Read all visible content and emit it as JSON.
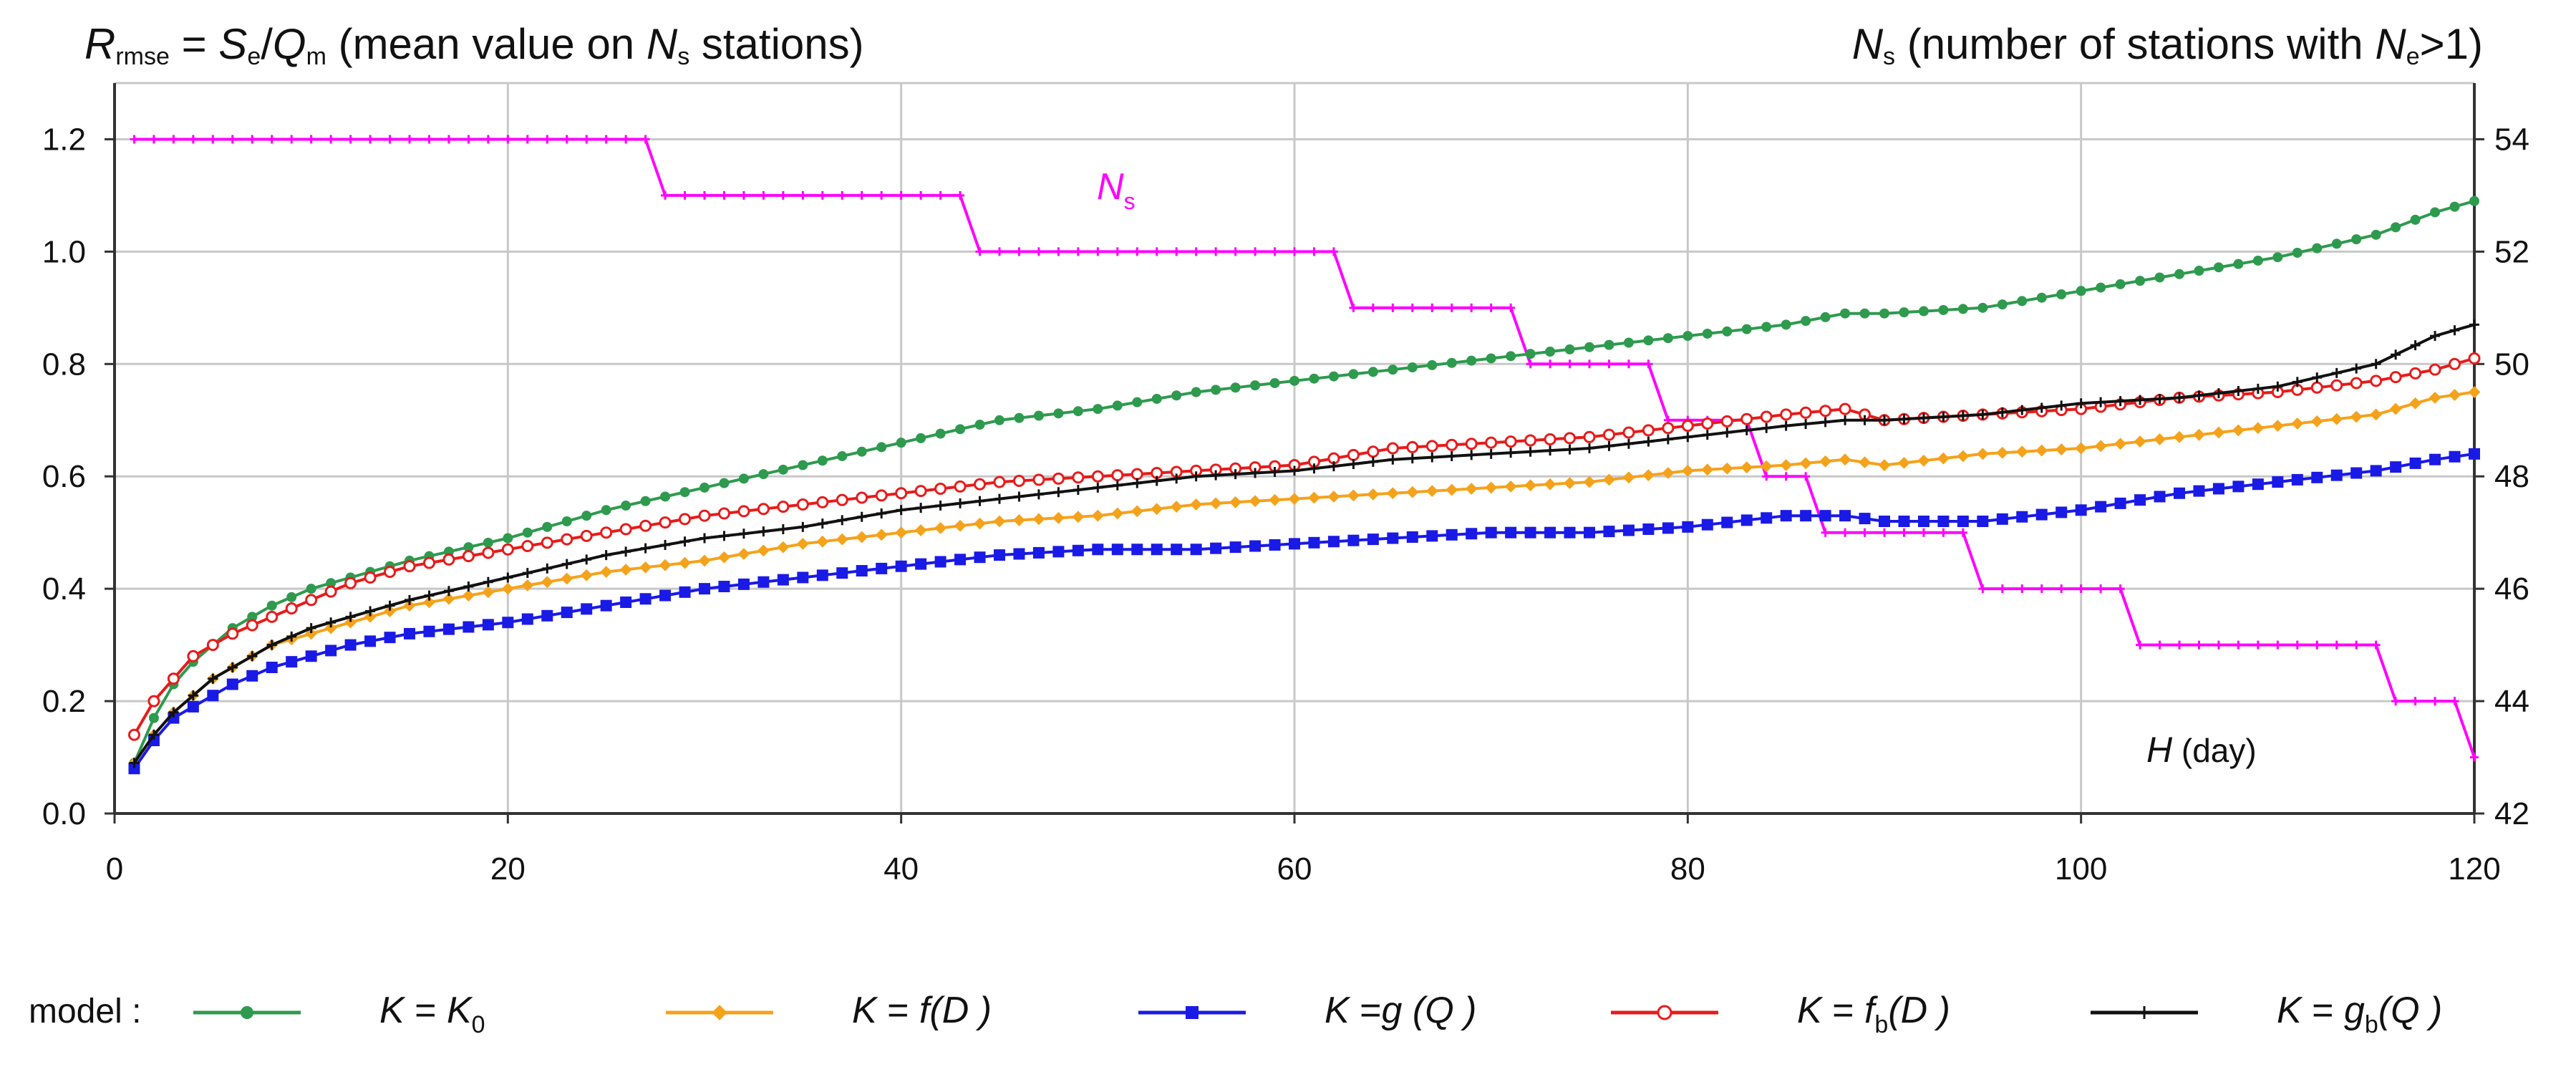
{
  "chart_data": {
    "type": "line",
    "left_title": {
      "r": "R",
      "r_sub": "rmse",
      "eq": " = ",
      "s": "S",
      "s_sub": "e",
      "slash": "/",
      "q": "Q",
      "q_sub": "m",
      "text": " (mean value on ",
      "n": "N",
      "n_sub": "s",
      "end": " stations)"
    },
    "right_title": {
      "n": "N",
      "n_sub": "s",
      "text": " (number of stations with ",
      "ne": "N",
      "ne_sub": "e",
      "end": ">1)"
    },
    "ns_label": {
      "n": "N",
      "sub": "s"
    },
    "x_label": {
      "h": "H",
      "unit": " (day)"
    },
    "xlim": [
      0,
      120
    ],
    "ylim": [
      0,
      1.3
    ],
    "y2lim": [
      42,
      55
    ],
    "x_ticks": [
      "0",
      "20",
      "40",
      "60",
      "80",
      "100",
      "120"
    ],
    "y_ticks": [
      "0.0",
      "0.2",
      "0.4",
      "0.6",
      "0.8",
      "1.0",
      "1.2"
    ],
    "y2_ticks": [
      "42",
      "44",
      "46",
      "48",
      "50",
      "52",
      "54"
    ],
    "grid": true,
    "legend_prefix": "model :",
    "legend": [
      {
        "k": "K",
        "eq": " = ",
        "f": "K",
        "sub": "0",
        "color": "#2e9a4e"
      },
      {
        "k": "K",
        "eq": " = ",
        "f": "f",
        "arg": "(D )",
        "color": "#f5a21b"
      },
      {
        "k": "K",
        "eq": " =",
        "f": "g",
        "arg": " (Q )",
        "color": "#1a1ae6"
      },
      {
        "k": "K",
        "eq": " = ",
        "f": "f",
        "sub": "b",
        "arg": "(D )",
        "color": "#e81b1b"
      },
      {
        "k": "K",
        "eq": " = ",
        "f": "g",
        "sub": "b",
        "arg": "(Q )",
        "color": "#111111"
      }
    ],
    "series": [
      {
        "name": "K = K0",
        "color": "#2e9a4e",
        "marker": "circle",
        "x": [
          1,
          2,
          3,
          4,
          5,
          6,
          8,
          10,
          12,
          15,
          20,
          25,
          30,
          35,
          40,
          45,
          50,
          55,
          60,
          65,
          70,
          75,
          80,
          85,
          88,
          90,
          95,
          100,
          105,
          110,
          115,
          118,
          120
        ],
        "y": [
          0.09,
          0.17,
          0.23,
          0.27,
          0.3,
          0.33,
          0.37,
          0.4,
          0.42,
          0.45,
          0.49,
          0.54,
          0.58,
          0.62,
          0.66,
          0.7,
          0.72,
          0.75,
          0.77,
          0.79,
          0.81,
          0.83,
          0.85,
          0.87,
          0.89,
          0.89,
          0.9,
          0.93,
          0.96,
          0.99,
          1.03,
          1.07,
          1.09
        ]
      },
      {
        "name": "K = f(D)",
        "color": "#f5a21b",
        "marker": "diamond",
        "x": [
          1,
          2,
          3,
          4,
          5,
          6,
          8,
          10,
          12,
          15,
          20,
          25,
          30,
          35,
          40,
          45,
          50,
          55,
          60,
          65,
          70,
          75,
          80,
          85,
          88,
          90,
          95,
          100,
          105,
          110,
          115,
          118,
          120
        ],
        "y": [
          0.09,
          0.14,
          0.18,
          0.21,
          0.24,
          0.26,
          0.3,
          0.32,
          0.34,
          0.37,
          0.4,
          0.43,
          0.45,
          0.48,
          0.5,
          0.52,
          0.53,
          0.55,
          0.56,
          0.57,
          0.58,
          0.59,
          0.61,
          0.62,
          0.63,
          0.62,
          0.64,
          0.65,
          0.67,
          0.69,
          0.71,
          0.74,
          0.75
        ]
      },
      {
        "name": "K = g(Q)",
        "color": "#1a1ae6",
        "marker": "square",
        "x": [
          1,
          2,
          3,
          4,
          5,
          6,
          8,
          10,
          12,
          15,
          20,
          25,
          30,
          35,
          40,
          45,
          50,
          55,
          60,
          65,
          70,
          75,
          80,
          85,
          88,
          90,
          95,
          100,
          105,
          110,
          115,
          118,
          120
        ],
        "y": [
          0.08,
          0.13,
          0.17,
          0.19,
          0.21,
          0.23,
          0.26,
          0.28,
          0.3,
          0.32,
          0.34,
          0.37,
          0.4,
          0.42,
          0.44,
          0.46,
          0.47,
          0.47,
          0.48,
          0.49,
          0.5,
          0.5,
          0.51,
          0.53,
          0.53,
          0.52,
          0.52,
          0.54,
          0.57,
          0.59,
          0.61,
          0.63,
          0.64
        ]
      },
      {
        "name": "K = fb(D)",
        "color": "#e81b1b",
        "marker": "open-circle",
        "x": [
          1,
          2,
          3,
          4,
          5,
          6,
          8,
          10,
          12,
          15,
          20,
          25,
          30,
          35,
          40,
          45,
          50,
          55,
          60,
          65,
          70,
          75,
          80,
          85,
          88,
          90,
          95,
          100,
          105,
          110,
          115,
          118,
          120
        ],
        "y": [
          0.14,
          0.2,
          0.24,
          0.28,
          0.3,
          0.32,
          0.35,
          0.38,
          0.41,
          0.44,
          0.47,
          0.5,
          0.53,
          0.55,
          0.57,
          0.59,
          0.6,
          0.61,
          0.62,
          0.65,
          0.66,
          0.67,
          0.69,
          0.71,
          0.72,
          0.7,
          0.71,
          0.72,
          0.74,
          0.75,
          0.77,
          0.79,
          0.81
        ]
      },
      {
        "name": "K = gb(Q)",
        "color": "#111111",
        "marker": "plus",
        "x": [
          1,
          2,
          3,
          4,
          5,
          6,
          8,
          10,
          12,
          15,
          20,
          25,
          30,
          35,
          40,
          45,
          50,
          55,
          60,
          65,
          70,
          75,
          80,
          85,
          88,
          90,
          95,
          100,
          105,
          110,
          115,
          118,
          120
        ],
        "y": [
          0.09,
          0.14,
          0.18,
          0.21,
          0.24,
          0.26,
          0.3,
          0.33,
          0.35,
          0.38,
          0.42,
          0.46,
          0.49,
          0.51,
          0.54,
          0.56,
          0.58,
          0.6,
          0.61,
          0.63,
          0.64,
          0.65,
          0.67,
          0.69,
          0.7,
          0.7,
          0.71,
          0.73,
          0.74,
          0.76,
          0.8,
          0.85,
          0.87
        ]
      }
    ],
    "ns_series": {
      "name": "Ns",
      "color": "#ff00ff",
      "axis": "right",
      "segments": [
        {
          "x0": 1,
          "x1": 27,
          "v": 54
        },
        {
          "x0": 28,
          "x1": 43,
          "v": 53
        },
        {
          "x0": 44,
          "x1": 62,
          "v": 52
        },
        {
          "x0": 63,
          "x1": 71,
          "v": 51
        },
        {
          "x0": 72,
          "x1": 78,
          "v": 50
        },
        {
          "x0": 79,
          "x1": 83,
          "v": 49
        },
        {
          "x0": 84,
          "x1": 86,
          "v": 48
        },
        {
          "x0": 87,
          "x1": 94,
          "v": 47
        },
        {
          "x0": 95,
          "x1": 102,
          "v": 46
        },
        {
          "x0": 103,
          "x1": 115,
          "v": 45
        },
        {
          "x0": 116,
          "x1": 119,
          "v": 44
        },
        {
          "x0": 120,
          "x1": 120,
          "v": 43
        }
      ]
    }
  }
}
